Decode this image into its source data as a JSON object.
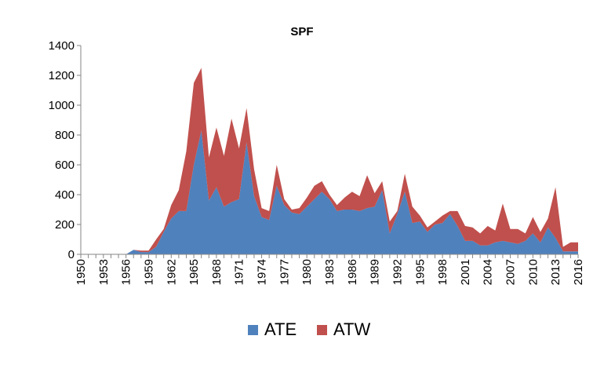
{
  "chart_data": {
    "type": "area",
    "stacked": true,
    "title": "SPF",
    "xlabel": "",
    "ylabel": "",
    "ylim": [
      0,
      1400
    ],
    "y_ticks": [
      0,
      200,
      400,
      600,
      800,
      1000,
      1200,
      1400
    ],
    "x_tick_labels": [
      "1950",
      "1953",
      "1956",
      "1959",
      "1962",
      "1965",
      "1968",
      "1971",
      "1974",
      "1977",
      "1980",
      "1983",
      "1986",
      "1989",
      "1992",
      "1995",
      "1998",
      "2001",
      "2004",
      "2007",
      "2010",
      "2013",
      "2016"
    ],
    "x": [
      1950,
      1951,
      1952,
      1953,
      1954,
      1955,
      1956,
      1957,
      1958,
      1959,
      1960,
      1961,
      1962,
      1963,
      1964,
      1965,
      1966,
      1967,
      1968,
      1969,
      1970,
      1971,
      1972,
      1973,
      1974,
      1975,
      1976,
      1977,
      1978,
      1979,
      1980,
      1981,
      1982,
      1983,
      1984,
      1985,
      1986,
      1987,
      1988,
      1989,
      1990,
      1991,
      1992,
      1993,
      1994,
      1995,
      1996,
      1997,
      1998,
      1999,
      2000,
      2001,
      2002,
      2003,
      2004,
      2005,
      2006,
      2007,
      2008,
      2009,
      2010,
      2011,
      2012,
      2013,
      2014,
      2015,
      2016
    ],
    "legend_position": "bottom",
    "grid": false,
    "series": [
      {
        "name": "ATE",
        "color": "#4F81BD",
        "values": [
          0,
          0,
          0,
          0,
          0,
          0,
          0,
          30,
          15,
          15,
          50,
          150,
          240,
          290,
          290,
          600,
          830,
          360,
          450,
          320,
          350,
          370,
          750,
          390,
          250,
          230,
          460,
          330,
          280,
          270,
          320,
          370,
          420,
          370,
          290,
          300,
          300,
          290,
          310,
          320,
          430,
          140,
          270,
          420,
          210,
          220,
          150,
          200,
          210,
          270,
          190,
          90,
          90,
          60,
          60,
          80,
          90,
          80,
          70,
          90,
          140,
          80,
          180,
          110,
          20,
          20,
          20
        ]
      },
      {
        "name": "ATW",
        "color": "#C0504D",
        "values": [
          0,
          0,
          0,
          0,
          0,
          0,
          0,
          0,
          10,
          10,
          50,
          20,
          90,
          140,
          400,
          550,
          420,
          290,
          400,
          340,
          560,
          340,
          230,
          180,
          60,
          60,
          140,
          40,
          20,
          40,
          60,
          90,
          70,
          30,
          40,
          80,
          120,
          100,
          220,
          90,
          60,
          80,
          20,
          120,
          110,
          40,
          30,
          20,
          50,
          20,
          100,
          100,
          90,
          80,
          130,
          80,
          250,
          90,
          100,
          50,
          110,
          70,
          60,
          340,
          30,
          60,
          60
        ]
      }
    ]
  }
}
